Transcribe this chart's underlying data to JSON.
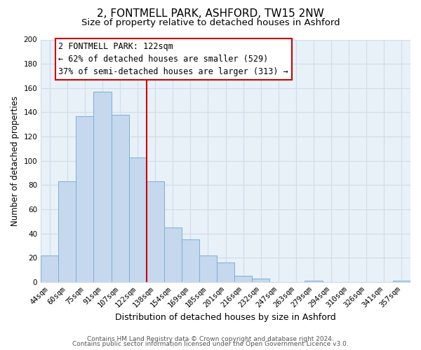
{
  "title": "2, FONTMELL PARK, ASHFORD, TW15 2NW",
  "subtitle": "Size of property relative to detached houses in Ashford",
  "xlabel": "Distribution of detached houses by size in Ashford",
  "ylabel": "Number of detached properties",
  "bar_labels": [
    "44sqm",
    "60sqm",
    "75sqm",
    "91sqm",
    "107sqm",
    "122sqm",
    "138sqm",
    "154sqm",
    "169sqm",
    "185sqm",
    "201sqm",
    "216sqm",
    "232sqm",
    "247sqm",
    "263sqm",
    "279sqm",
    "294sqm",
    "310sqm",
    "326sqm",
    "341sqm",
    "357sqm"
  ],
  "bar_values": [
    22,
    83,
    137,
    157,
    138,
    103,
    83,
    45,
    35,
    22,
    16,
    5,
    3,
    0,
    0,
    1,
    0,
    0,
    0,
    0,
    1
  ],
  "bar_color": "#c5d8ee",
  "bar_edge_color": "#7bafd4",
  "vline_color": "#cc0000",
  "vline_bar_index": 5,
  "ylim": [
    0,
    200
  ],
  "yticks": [
    0,
    20,
    40,
    60,
    80,
    100,
    120,
    140,
    160,
    180,
    200
  ],
  "annotation_title": "2 FONTMELL PARK: 122sqm",
  "annotation_line1": "← 62% of detached houses are smaller (529)",
  "annotation_line2": "37% of semi-detached houses are larger (313) →",
  "annotation_box_color": "#ffffff",
  "annotation_box_edge": "#cc0000",
  "footer1": "Contains HM Land Registry data © Crown copyright and database right 2024.",
  "footer2": "Contains public sector information licensed under the Open Government Licence v3.0.",
  "title_fontsize": 11,
  "subtitle_fontsize": 9.5,
  "xlabel_fontsize": 9,
  "ylabel_fontsize": 8.5,
  "tick_fontsize": 7.5,
  "annotation_fontsize": 8.5,
  "footer_fontsize": 6.5,
  "grid_color": "#d0dce8",
  "bg_color": "#e8f0f8"
}
